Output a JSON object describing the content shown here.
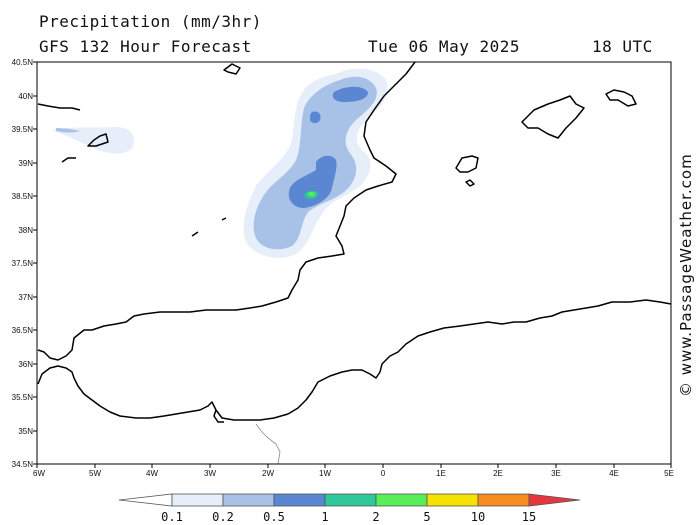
{
  "header": {
    "title": "Precipitation (mm/3hr)",
    "model_line": "GFS 132 Hour Forecast",
    "date": "Tue 06 May 2025",
    "time": "18 UTC"
  },
  "copyright": "© www.PassageWeather.com",
  "axes": {
    "lat_labels": [
      "40.5N",
      "40N",
      "39.5N",
      "39N",
      "38.5N",
      "38N",
      "37.5N",
      "37N",
      "36.5N",
      "36N",
      "35.5N",
      "35N",
      "34.5N"
    ],
    "lon_labels": [
      "6W",
      "5W",
      "4W",
      "3W",
      "2W",
      "1W",
      "0",
      "1E",
      "2E",
      "3E",
      "4E",
      "5E"
    ]
  },
  "legend": {
    "ticks": [
      "0.1",
      "0.2",
      "0.5",
      "1",
      "2",
      "5",
      "10",
      "15"
    ],
    "colors": [
      "#ffffff",
      "#e6eef9",
      "#a8c1e6",
      "#5a86d2",
      "#2ec799",
      "#59ee59",
      "#f5e200",
      "#f78c1e",
      "#e8363e"
    ]
  }
}
